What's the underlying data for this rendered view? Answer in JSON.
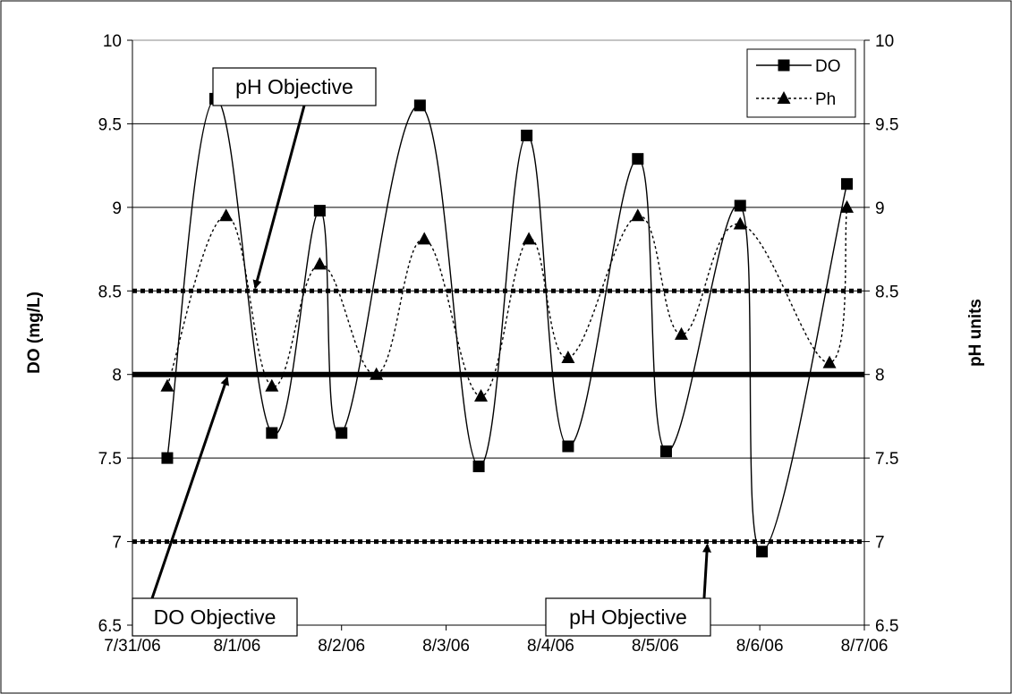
{
  "chart_data": {
    "type": "line",
    "title": "",
    "xlabel": "",
    "ylabel": "DO (mg/L)",
    "y2label": "pH units",
    "x_ticks": [
      "7/31/06",
      "8/1/06",
      "8/2/06",
      "8/3/06",
      "8/4/06",
      "8/5/06",
      "8/6/06",
      "8/7/06"
    ],
    "y_ticks": [
      "6.5",
      "7",
      "7.5",
      "8",
      "8.5",
      "9",
      "9.5",
      "10"
    ],
    "y2_ticks": [
      "6.5",
      "7",
      "7.5",
      "8",
      "8.5",
      "9",
      "9.5",
      "10"
    ],
    "xlim": [
      "7/31/06 00:00",
      "8/7/06 00:00"
    ],
    "ylim": [
      6.5,
      10
    ],
    "y2lim": [
      6.5,
      10
    ],
    "grid": "horizontal",
    "legend_position": "top-right",
    "series": [
      {
        "name": "DO",
        "axis": "left",
        "style": "solid line with square markers",
        "color": "#000000",
        "points": [
          {
            "x": "7/31/06 08:00",
            "y": 7.5
          },
          {
            "x": "7/31/06 19:00",
            "y": 9.65
          },
          {
            "x": "8/1/06 08:00",
            "y": 7.65
          },
          {
            "x": "8/1/06 19:00",
            "y": 8.98
          },
          {
            "x": "8/2/06 00:00",
            "y": 7.65
          },
          {
            "x": "8/2/06 18:00",
            "y": 9.61
          },
          {
            "x": "8/3/06 07:30",
            "y": 7.45
          },
          {
            "x": "8/3/06 18:30",
            "y": 9.43
          },
          {
            "x": "8/4/06 04:00",
            "y": 7.57
          },
          {
            "x": "8/4/06 20:00",
            "y": 9.29
          },
          {
            "x": "8/5/06 02:30",
            "y": 7.54
          },
          {
            "x": "8/5/06 19:30",
            "y": 9.01
          },
          {
            "x": "8/6/06 00:30",
            "y": 6.94
          },
          {
            "x": "8/6/06 20:00",
            "y": 9.14
          }
        ]
      },
      {
        "name": "Ph",
        "axis": "right",
        "style": "dotted line with triangle markers",
        "color": "#000000",
        "points": [
          {
            "x": "7/31/06 08:00",
            "y": 7.93
          },
          {
            "x": "7/31/06 21:30",
            "y": 8.95
          },
          {
            "x": "8/1/06 08:00",
            "y": 7.93
          },
          {
            "x": "8/1/06 19:00",
            "y": 8.66
          },
          {
            "x": "8/2/06 08:00",
            "y": 8.0
          },
          {
            "x": "8/2/06 19:00",
            "y": 8.81
          },
          {
            "x": "8/3/06 08:00",
            "y": 7.87
          },
          {
            "x": "8/3/06 19:00",
            "y": 8.81
          },
          {
            "x": "8/4/06 04:00",
            "y": 8.1
          },
          {
            "x": "8/4/06 20:00",
            "y": 8.95
          },
          {
            "x": "8/5/06 06:00",
            "y": 8.24
          },
          {
            "x": "8/5/06 19:30",
            "y": 8.9
          },
          {
            "x": "8/6/06 16:00",
            "y": 8.07
          },
          {
            "x": "8/6/06 20:00",
            "y": 9.0
          }
        ]
      }
    ],
    "reference_lines": [
      {
        "value": 8.5,
        "style": "thick dotted",
        "label": "pH Objective"
      },
      {
        "value": 8.0,
        "style": "thick solid",
        "label": "DO Objective"
      },
      {
        "value": 7.0,
        "style": "thick dotted",
        "label": "pH Objective"
      }
    ],
    "annotations": [
      {
        "text": "pH Objective",
        "points_to": {
          "x": "8/1/06 04:00",
          "y": 8.5
        }
      },
      {
        "text": "DO Objective",
        "points_to": {
          "x": "7/31/06 22:00",
          "y": 8.0
        }
      },
      {
        "text": "pH Objective",
        "points_to": {
          "x": "8/5/06 12:00",
          "y": 7.0
        }
      }
    ]
  }
}
